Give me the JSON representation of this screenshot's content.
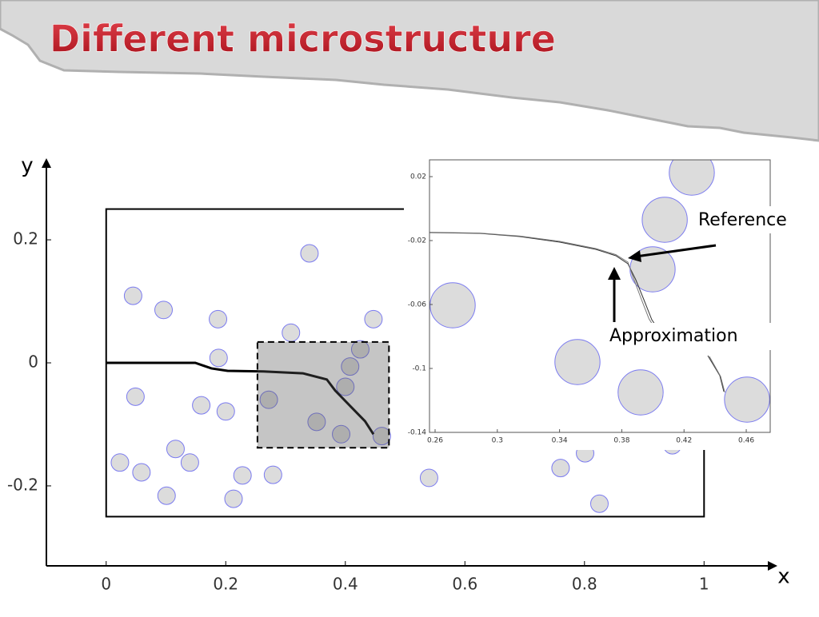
{
  "chart_data": [
    {
      "type": "scatter",
      "title": "Different microstructure",
      "x_label": "x",
      "y_label": "y",
      "xlim": [
        -0.1,
        1.12
      ],
      "ylim": [
        -0.33,
        0.33
      ],
      "xticks": [
        0,
        0.2,
        0.4,
        0.6,
        0.8,
        1
      ],
      "yticks": [
        -0.2,
        0,
        0.2
      ],
      "radius": 0.0147,
      "domain": {
        "x": [
          0,
          1
        ],
        "y": [
          -0.25,
          0.25
        ]
      },
      "zoom_box": {
        "x": [
          0.253,
          0.473
        ],
        "y": [
          -0.138,
          0.034
        ]
      },
      "series": [
        {
          "type": "scatter",
          "color": "#7b7bf0",
          "fill": "#dcdcdc",
          "x": [
            0.34,
            0.045,
            0.096,
            0.187,
            0.309,
            0.447,
            0.425,
            0.408,
            0.188,
            0.4,
            0.049,
            0.272,
            0.159,
            0.2,
            0.352,
            0.393,
            0.461,
            0.116,
            0.023,
            0.14,
            0.059,
            0.228,
            0.279,
            0.101,
            0.213,
            0.54,
            0.76,
            0.801,
            0.825,
            0.947
          ],
          "values": [
            0.178,
            0.109,
            0.086,
            0.071,
            0.049,
            0.071,
            0.022,
            -0.006,
            0.008,
            -0.039,
            -0.055,
            -0.06,
            -0.069,
            -0.079,
            -0.096,
            -0.116,
            -0.119,
            -0.14,
            -0.162,
            -0.162,
            -0.178,
            -0.183,
            -0.182,
            -0.216,
            -0.221,
            -0.187,
            -0.171,
            -0.147,
            -0.229,
            -0.134
          ]
        },
        {
          "type": "line",
          "color": "#000000",
          "x": [
            0,
            0.149,
            0.176,
            0.203,
            0.263,
            0.329,
            0.369,
            0.383,
            0.409,
            0.433,
            0.447
          ],
          "values": [
            0,
            0,
            -0.009,
            -0.013,
            -0.014,
            -0.017,
            -0.027,
            -0.045,
            -0.071,
            -0.095,
            -0.116
          ]
        }
      ]
    },
    {
      "type": "scatter",
      "xlim": [
        0.2564,
        0.4754
      ],
      "ylim": [
        -0.14,
        0.0305
      ],
      "xticks": [
        0.26,
        0.3,
        0.34,
        0.38,
        0.42,
        0.46
      ],
      "yticks": [
        0.02,
        -0.02,
        -0.06,
        -0.1,
        -0.14
      ],
      "radius": 0.0145,
      "series": [
        {
          "type": "scatter",
          "color": "#7b7bf0",
          "fill": "#dcdcdc",
          "x": [
            0.425,
            0.4076,
            0.3998,
            0.2713,
            0.3515,
            0.3921,
            0.4605
          ],
          "values": [
            0.0225,
            -0.007,
            -0.038,
            -0.0605,
            -0.096,
            -0.115,
            -0.1195
          ]
        },
        {
          "type": "line",
          "color": "#333333",
          "x": [
            0.2564,
            0.2888,
            0.3145,
            0.3402,
            0.3633,
            0.3762,
            0.3839,
            0.389,
            0.3942,
            0.3993,
            0.4045,
            null,
            0.4353,
            0.443,
            0.4456
          ],
          "values": [
            -0.015,
            -0.0155,
            -0.0175,
            -0.021,
            -0.0255,
            -0.0295,
            -0.0345,
            -0.0445,
            -0.057,
            -0.0695,
            -0.077,
            null,
            -0.092,
            -0.1045,
            -0.1145
          ]
        },
        {
          "type": "line",
          "color": "#777777",
          "x": [
            0.2564,
            0.2888,
            0.3145,
            0.3402,
            0.3633,
            0.3762,
            0.3839,
            0.3875,
            0.3925,
            0.3975,
            0.403,
            null,
            0.4363,
            0.4435,
            0.4462
          ],
          "values": [
            -0.0148,
            -0.0153,
            -0.0172,
            -0.0205,
            -0.025,
            -0.0288,
            -0.0335,
            -0.0435,
            -0.0565,
            -0.069,
            -0.0775,
            null,
            -0.0925,
            -0.105,
            -0.115
          ]
        }
      ],
      "annotations": [
        {
          "text": "Reference"
        },
        {
          "text": "Approximation"
        }
      ]
    }
  ]
}
